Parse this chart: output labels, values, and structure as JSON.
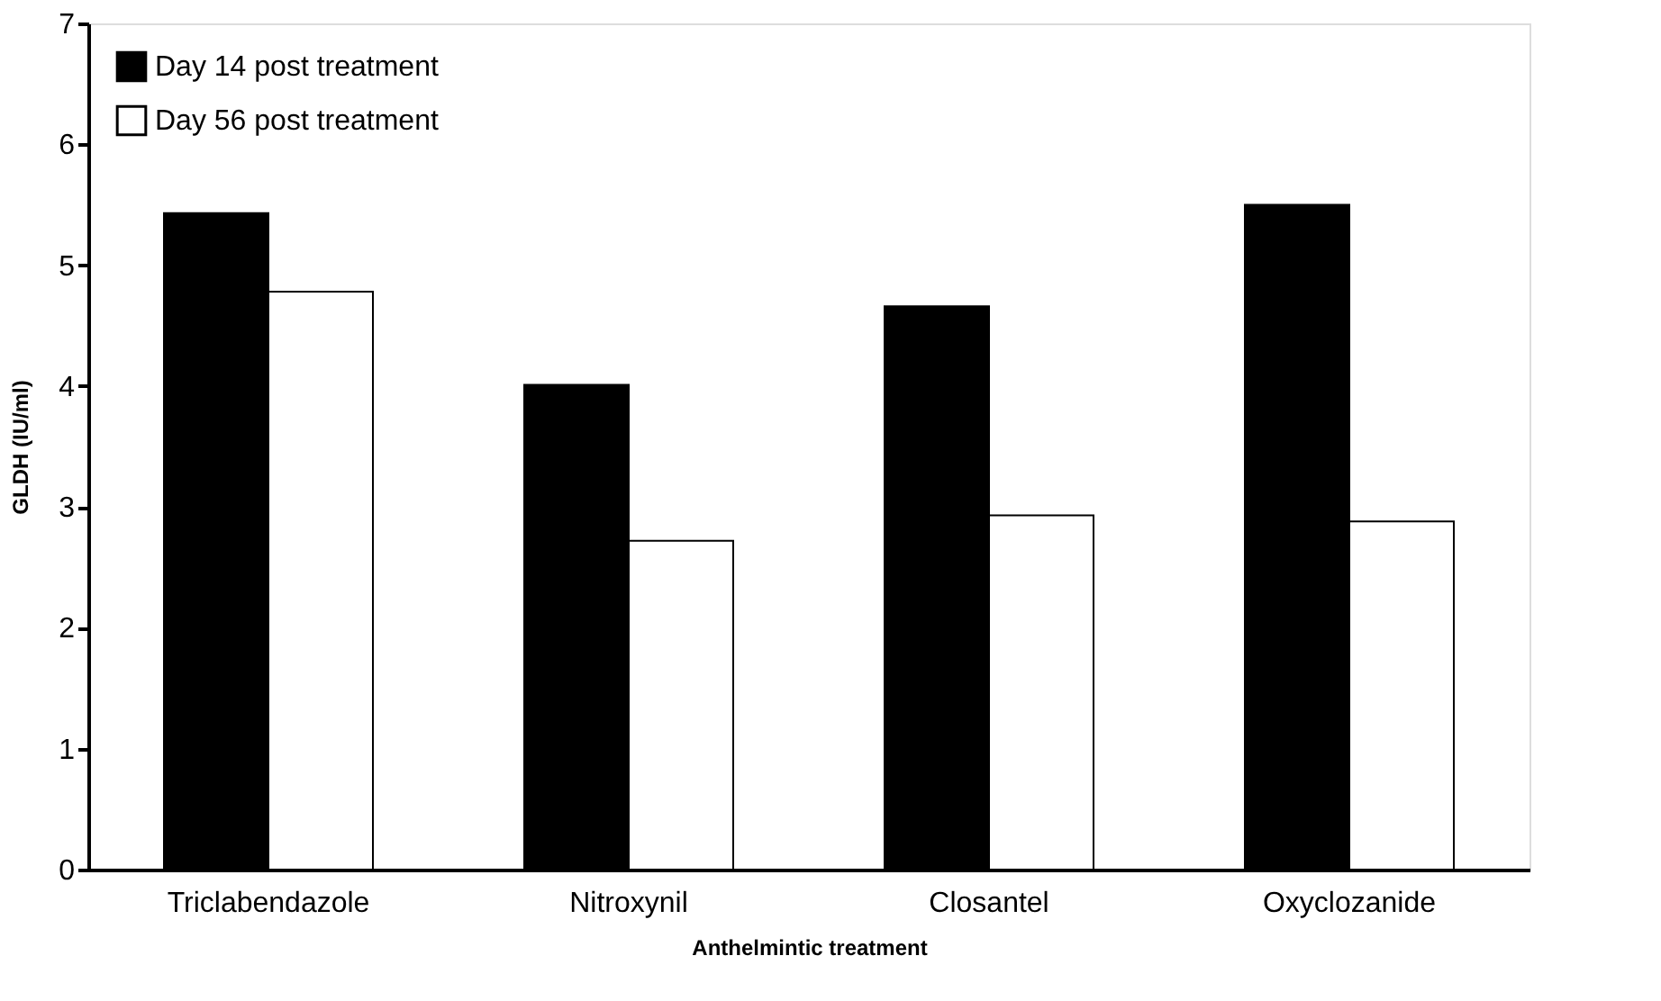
{
  "chart_data": {
    "type": "bar",
    "xlabel": "Anthelmintic treatment",
    "ylabel": "GLDH (IU/ml)",
    "categories": [
      "Triclabendazole",
      "Nitroxynil",
      "Closantel",
      "Oxyclozanide"
    ],
    "series": [
      {
        "name": "Day 14 post treatment",
        "color": "#000000",
        "values": [
          5.43,
          4.01,
          4.66,
          5.5
        ]
      },
      {
        "name": "Day 56 post treatment",
        "color": "#ffffff",
        "values": [
          4.78,
          2.72,
          2.93,
          2.88
        ]
      }
    ],
    "ylim": [
      0,
      7
    ],
    "yticks": [
      0,
      1,
      2,
      3,
      4,
      5,
      6,
      7
    ],
    "grid": false,
    "legend": "top left"
  }
}
